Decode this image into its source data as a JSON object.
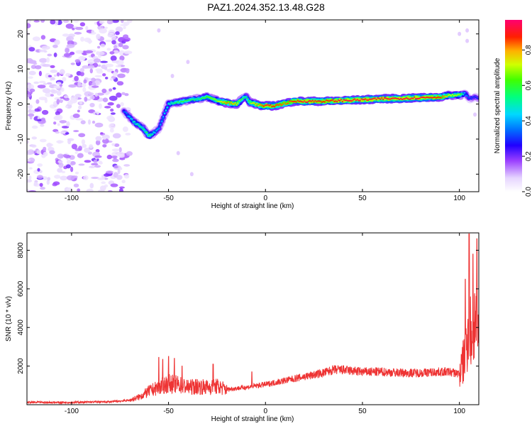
{
  "figure": {
    "title": "PAZ1.2024.352.13.48.G28"
  },
  "chart_data": [
    {
      "type": "heatmap",
      "xlabel": "Height of straight line (km)",
      "ylabel": "Frequency (Hz)",
      "xlim": [
        -123,
        110
      ],
      "ylim": [
        -25,
        24
      ],
      "xticks": [
        -100,
        -50,
        0,
        50,
        100
      ],
      "yticks": [
        -20,
        -10,
        0,
        10,
        20
      ],
      "colorbar": {
        "label": "Normalized spectral amplitude",
        "range": [
          0,
          0.97
        ],
        "ticks": [
          0.0,
          0.2,
          0.4,
          0.6,
          0.8
        ],
        "colors": [
          "#ffffff",
          "#c8a2f0",
          "#7000e0",
          "#0000ff",
          "#00c0ff",
          "#00ff80",
          "#60ff00",
          "#ffff00",
          "#ff8000",
          "#ff0000",
          "#ff0080"
        ]
      },
      "ridge": {
        "x": [
          -73,
          -68,
          -63,
          -60,
          -57,
          -55,
          -50,
          -45,
          -40,
          -35,
          -30,
          -25,
          -20,
          -15,
          -12,
          -10,
          -8,
          -5,
          -2,
          0,
          5,
          10,
          15,
          20,
          30,
          40,
          50,
          60,
          70,
          80,
          90,
          95,
          100,
          103,
          105,
          108,
          110
        ],
        "freq": [
          -2,
          -5,
          -7,
          -9,
          -8,
          -7,
          0,
          0.5,
          1,
          1.5,
          2,
          1,
          0.3,
          0,
          1.5,
          2,
          0.5,
          0,
          -0.5,
          -0.5,
          -0.5,
          0.2,
          0.8,
          0.8,
          0.8,
          1.0,
          1.2,
          1.5,
          1.6,
          1.8,
          2,
          2.5,
          2.5,
          3,
          1.5,
          2,
          1.5
        ],
        "amp": [
          0.35,
          0.5,
          0.55,
          0.6,
          0.45,
          0.4,
          0.5,
          0.6,
          0.6,
          0.55,
          0.65,
          0.7,
          0.85,
          0.8,
          0.6,
          0.55,
          0.7,
          0.8,
          0.85,
          0.95,
          0.9,
          0.85,
          0.9,
          0.95,
          0.9,
          0.95,
          0.95,
          0.95,
          0.95,
          0.95,
          0.9,
          0.75,
          0.7,
          0.4,
          0.35,
          0.3,
          0.3
        ]
      },
      "noise_region_x": [
        -123,
        -70
      ]
    },
    {
      "type": "line",
      "xlabel": "Height of straight line (km)",
      "ylabel": "SNR (10 * v/v)",
      "xlim": [
        -123,
        110
      ],
      "ylim": [
        0,
        8900
      ],
      "xticks": [
        -100,
        -50,
        0,
        50,
        100
      ],
      "yticks": [
        2000,
        4000,
        6000,
        8000
      ],
      "color": "#ee3333",
      "envelope": {
        "x": [
          -123,
          -100,
          -80,
          -70,
          -65,
          -60,
          -55,
          -50,
          -45,
          -40,
          -35,
          -30,
          -25,
          -20,
          -10,
          0,
          10,
          20,
          30,
          35,
          40,
          50,
          60,
          70,
          80,
          90,
          95,
          100,
          103,
          105,
          106,
          108,
          110
        ],
        "snr": [
          120,
          120,
          150,
          230,
          400,
          700,
          900,
          1100,
          1050,
          900,
          950,
          900,
          950,
          800,
          900,
          1050,
          1250,
          1450,
          1650,
          1800,
          1800,
          1700,
          1700,
          1650,
          1650,
          1700,
          1700,
          1600,
          2500,
          4500,
          3500,
          4500,
          3500
        ]
      },
      "spikes": [
        {
          "x": -55,
          "snr": 2450
        },
        {
          "x": -53,
          "snr": 2350
        },
        {
          "x": -50,
          "snr": 2500
        },
        {
          "x": -47,
          "snr": 2400
        },
        {
          "x": -43,
          "snr": 2000
        },
        {
          "x": -27,
          "snr": 2100
        },
        {
          "x": -7,
          "snr": 1700
        },
        {
          "x": 103,
          "snr": 6500
        },
        {
          "x": 105,
          "snr": 8850
        },
        {
          "x": 107,
          "snr": 7800
        },
        {
          "x": 109,
          "snr": 8600
        }
      ]
    }
  ]
}
